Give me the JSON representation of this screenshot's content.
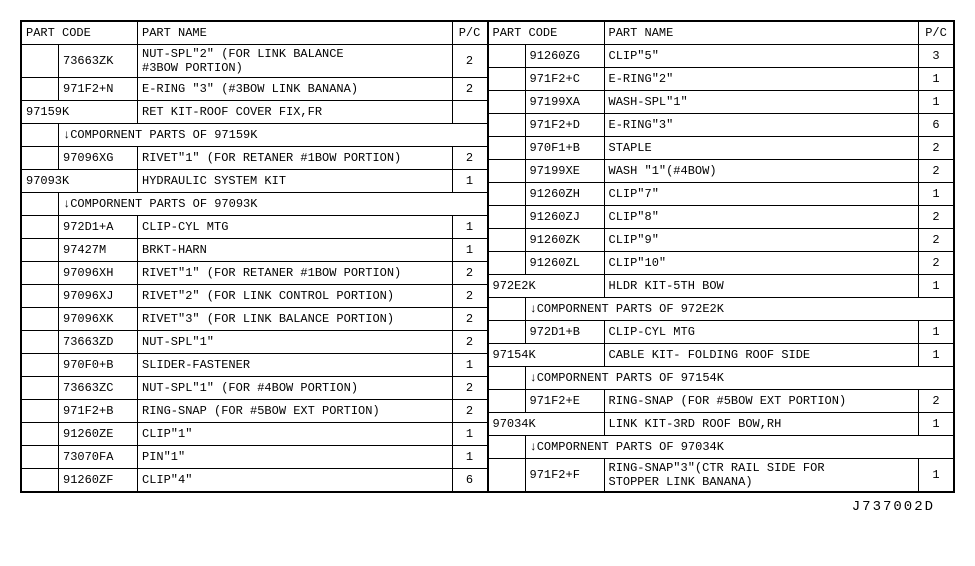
{
  "doc_id": "J737002D",
  "headers": {
    "code": "PART CODE",
    "name": "PART NAME",
    "pc": "P/C"
  },
  "left": [
    {
      "t": "row",
      "indent": true,
      "code": "73663ZK",
      "name": "NUT-SPL\"2\" (FOR LINK BALANCE\n #3BOW PORTION)",
      "pc": "2",
      "tall": true
    },
    {
      "t": "row",
      "indent": true,
      "code": "971F2+N",
      "name": "E-RING \"3\" (#3BOW LINK BANANA)",
      "pc": "2"
    },
    {
      "t": "kit",
      "code": "97159K",
      "name": "RET KIT-ROOF COVER FIX,FR",
      "pc": ""
    },
    {
      "t": "comp",
      "text": "↓COMPORNENT PARTS OF 97159K"
    },
    {
      "t": "row",
      "indent": true,
      "code": "97096XG",
      "name": "RIVET\"1\" (FOR RETANER #1BOW PORTION)",
      "pc": "2"
    },
    {
      "t": "kit",
      "code": "97093K",
      "name": "HYDRAULIC SYSTEM KIT",
      "pc": "1"
    },
    {
      "t": "comp",
      "text": "↓COMPORNENT PARTS OF 97093K"
    },
    {
      "t": "row",
      "indent": true,
      "code": "972D1+A",
      "name": "CLIP-CYL MTG",
      "pc": "1"
    },
    {
      "t": "row",
      "indent": true,
      "code": "97427M",
      "name": "BRKT-HARN",
      "pc": "1"
    },
    {
      "t": "row",
      "indent": true,
      "code": "97096XH",
      "name": "RIVET\"1\" (FOR RETANER #1BOW PORTION)",
      "pc": "2"
    },
    {
      "t": "row",
      "indent": true,
      "code": "97096XJ",
      "name": "RIVET\"2\" (FOR LINK CONTROL PORTION)",
      "pc": "2"
    },
    {
      "t": "row",
      "indent": true,
      "code": "97096XK",
      "name": "RIVET\"3\" (FOR LINK BALANCE PORTION)",
      "pc": "2"
    },
    {
      "t": "row",
      "indent": true,
      "code": "73663ZD",
      "name": "NUT-SPL\"1\"",
      "pc": "2"
    },
    {
      "t": "row",
      "indent": true,
      "code": "970F0+B",
      "name": "SLIDER-FASTENER",
      "pc": "1"
    },
    {
      "t": "row",
      "indent": true,
      "code": "73663ZC",
      "name": "NUT-SPL\"1\" (FOR #4BOW PORTION)",
      "pc": "2"
    },
    {
      "t": "row",
      "indent": true,
      "code": "971F2+B",
      "name": "RING-SNAP (FOR #5BOW EXT PORTION)",
      "pc": "2"
    },
    {
      "t": "row",
      "indent": true,
      "code": "91260ZE",
      "name": "CLIP\"1\"",
      "pc": "1"
    },
    {
      "t": "row",
      "indent": true,
      "code": "73070FA",
      "name": "PIN\"1\"",
      "pc": "1"
    },
    {
      "t": "row",
      "indent": true,
      "code": "91260ZF",
      "name": "CLIP\"4\"",
      "pc": "6"
    }
  ],
  "right": [
    {
      "t": "row",
      "indent": true,
      "code": "91260ZG",
      "name": "CLIP\"5\"",
      "pc": "3"
    },
    {
      "t": "row",
      "indent": true,
      "code": "971F2+C",
      "name": "E-RING\"2\"",
      "pc": "1"
    },
    {
      "t": "row",
      "indent": true,
      "code": "97199XA",
      "name": "WASH-SPL\"1\"",
      "pc": "1"
    },
    {
      "t": "row",
      "indent": true,
      "code": "971F2+D",
      "name": "E-RING\"3\"",
      "pc": "6"
    },
    {
      "t": "row",
      "indent": true,
      "code": "970F1+B",
      "name": "STAPLE",
      "pc": "2"
    },
    {
      "t": "row",
      "indent": true,
      "code": "97199XE",
      "name": "WASH \"1\"(#4BOW)",
      "pc": "2"
    },
    {
      "t": "row",
      "indent": true,
      "code": "91260ZH",
      "name": "CLIP\"7\"",
      "pc": "1"
    },
    {
      "t": "row",
      "indent": true,
      "code": "91260ZJ",
      "name": "CLIP\"8\"",
      "pc": "2"
    },
    {
      "t": "row",
      "indent": true,
      "code": "91260ZK",
      "name": "CLIP\"9\"",
      "pc": "2"
    },
    {
      "t": "row",
      "indent": true,
      "code": "91260ZL",
      "name": "CLIP\"10\"",
      "pc": "2"
    },
    {
      "t": "kit",
      "code": "972E2K",
      "name": "HLDR KIT-5TH BOW",
      "pc": "1"
    },
    {
      "t": "comp",
      "text": "↓COMPORNENT PARTS OF 972E2K"
    },
    {
      "t": "row",
      "indent": true,
      "code": "972D1+B",
      "name": "CLIP-CYL MTG",
      "pc": "1"
    },
    {
      "t": "kit",
      "code": "97154K",
      "name": "CABLE KIT- FOLDING ROOF SIDE",
      "pc": "1"
    },
    {
      "t": "comp",
      "text": "↓COMPORNENT PARTS OF 97154K"
    },
    {
      "t": "row",
      "indent": true,
      "code": "971F2+E",
      "name": "RING-SNAP (FOR #5BOW EXT PORTION)",
      "pc": "2"
    },
    {
      "t": "kit",
      "code": "97034K",
      "name": "LINK KIT-3RD ROOF BOW,RH",
      "pc": "1"
    },
    {
      "t": "comp",
      "text": "↓COMPORNENT PARTS OF 97034K"
    },
    {
      "t": "row",
      "indent": true,
      "code": "971F2+F",
      "name": "RING-SNAP\"3\"(CTR RAIL SIDE FOR\nSTOPPER LINK BANANA)",
      "pc": "1",
      "tall": true
    }
  ]
}
